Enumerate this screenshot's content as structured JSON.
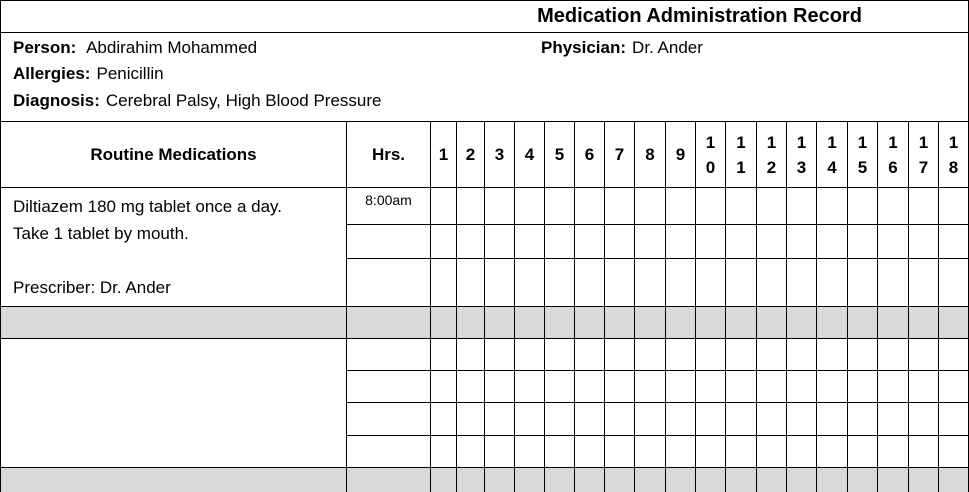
{
  "title": "Medication Administration Record",
  "person": {
    "label": "Person:",
    "value": "Abdirahim Mohammed"
  },
  "physician": {
    "label": "Physician:",
    "value": "Dr. Ander"
  },
  "allergies": {
    "label": "Allergies:",
    "value": "Penicillin"
  },
  "diagnosis": {
    "label": "Diagnosis:",
    "value": "Cerebral Palsy, High Blood Pressure"
  },
  "table": {
    "col_medications": "Routine Medications",
    "col_hrs": "Hrs.",
    "days": [
      "1",
      "2",
      "3",
      "4",
      "5",
      "6",
      "7",
      "8",
      "9",
      "10",
      "11",
      "12",
      "13",
      "14",
      "15",
      "16",
      "17",
      "18"
    ],
    "medications": [
      {
        "line1": "Diltiazem 180 mg tablet once a day.",
        "line2": "Take 1 tablet by mouth.",
        "prescriber": "Prescriber: Dr. Ander",
        "hours": [
          "8:00am",
          "",
          ""
        ]
      },
      {
        "line1": "",
        "line2": "",
        "prescriber": "",
        "hours": [
          "",
          "",
          "",
          ""
        ]
      }
    ]
  }
}
